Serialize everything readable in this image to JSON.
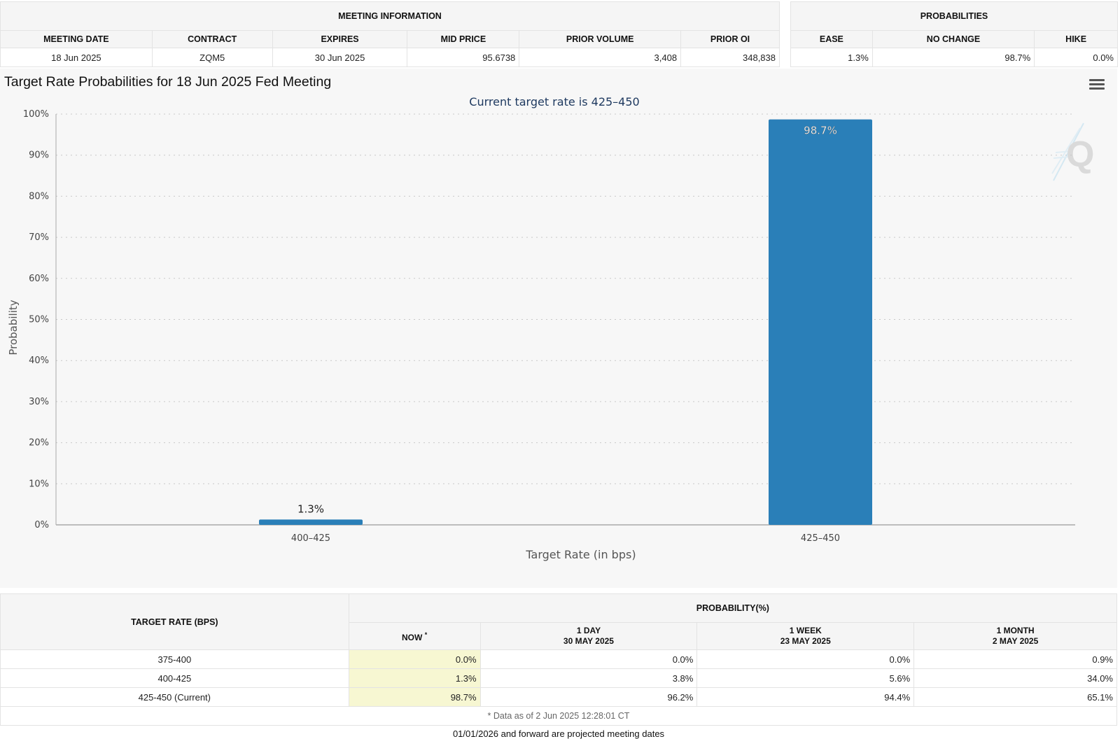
{
  "meeting_info": {
    "group_label": "MEETING INFORMATION",
    "headers": [
      "MEETING DATE",
      "CONTRACT",
      "EXPIRES",
      "MID PRICE",
      "PRIOR VOLUME",
      "PRIOR OI"
    ],
    "values": [
      "18 Jun 2025",
      "ZQM5",
      "30 Jun 2025",
      "95.6738",
      "3,408",
      "348,838"
    ]
  },
  "probabilities": {
    "group_label": "PROBABILITIES",
    "headers": [
      "EASE",
      "NO CHANGE",
      "HIKE"
    ],
    "values": [
      "1.3%",
      "98.7%",
      "0.0%"
    ]
  },
  "chart_data": {
    "type": "bar",
    "title": "Target Rate Probabilities for 18 Jun 2025 Fed Meeting",
    "subtitle": "Current target rate is 425–450",
    "xlabel": "Target Rate (in bps)",
    "ylabel": "Probability",
    "categories": [
      "400–425",
      "425–450"
    ],
    "values": [
      1.3,
      98.7
    ],
    "data_labels": [
      "1.3%",
      "98.7%"
    ],
    "ylim": [
      0,
      100
    ],
    "yticks": [
      0,
      10,
      20,
      30,
      40,
      50,
      60,
      70,
      80,
      90,
      100
    ],
    "ytick_labels": [
      "0%",
      "10%",
      "20%",
      "30%",
      "40%",
      "50%",
      "60%",
      "70%",
      "80%",
      "90%",
      "100%"
    ],
    "grid": true,
    "bar_color": "#2a7fb8"
  },
  "history_table": {
    "target_rate_header": "TARGET RATE (BPS)",
    "probability_header": "PROBABILITY(%)",
    "now_label": "NOW",
    "now_marker": "*",
    "columns": [
      {
        "label": "1 DAY",
        "date": "30 MAY 2025"
      },
      {
        "label": "1 WEEK",
        "date": "23 MAY 2025"
      },
      {
        "label": "1 MONTH",
        "date": "2 MAY 2025"
      }
    ],
    "rows": [
      {
        "rate": "375-400",
        "now": "0.0%",
        "values": [
          "0.0%",
          "0.0%",
          "0.9%"
        ]
      },
      {
        "rate": "400-425",
        "now": "1.3%",
        "values": [
          "3.8%",
          "5.6%",
          "34.0%"
        ]
      },
      {
        "rate": "425-450 (Current)",
        "now": "98.7%",
        "values": [
          "96.2%",
          "94.4%",
          "65.1%"
        ]
      }
    ],
    "data_note": "* Data as of 2 Jun 2025 12:28:01 CT"
  },
  "footer_note": "01/01/2026 and forward are projected meeting dates",
  "watermark_icon": "quikstrike-q-logo-icon",
  "menu_icon": "hamburger-menu-icon"
}
